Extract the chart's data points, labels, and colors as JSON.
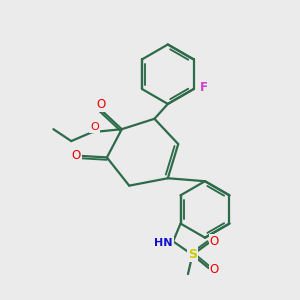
{
  "bg_color": "#ebebeb",
  "bond_color": "#2d6b4a",
  "bond_width": 1.6,
  "atom_colors": {
    "O": "#ee0000",
    "F": "#cc44cc",
    "N": "#1111cc",
    "S": "#cccc00",
    "C": "#2d6b4a"
  },
  "figsize": [
    3.0,
    3.0
  ],
  "dpi": 100
}
